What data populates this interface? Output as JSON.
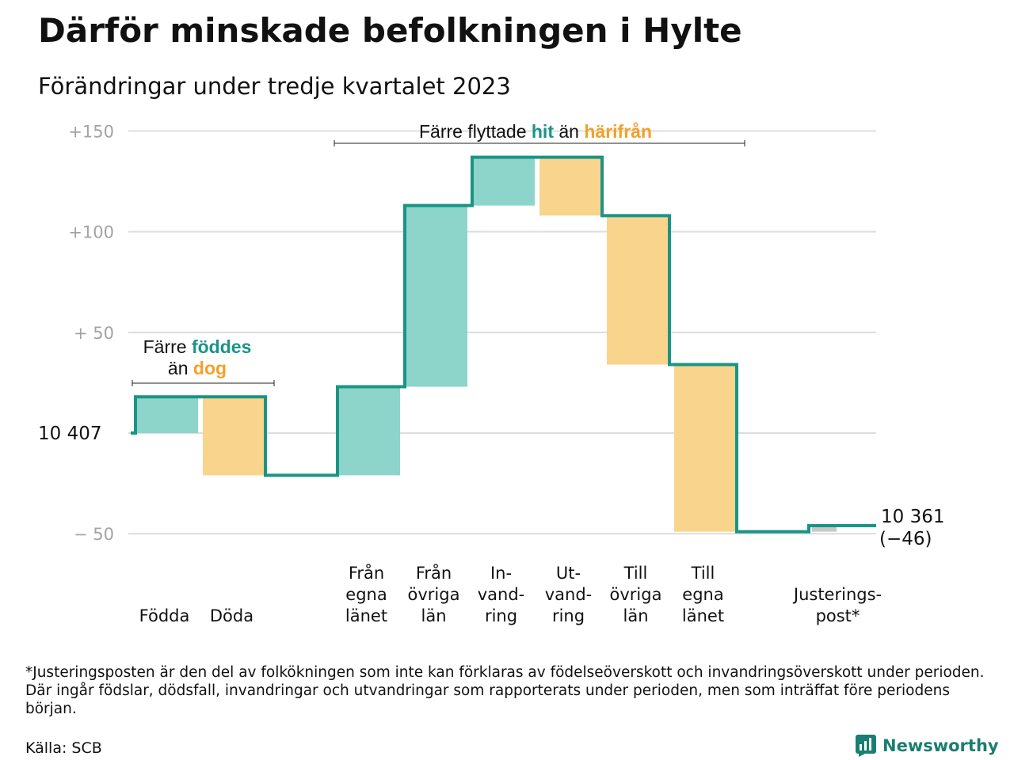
{
  "title": "Därför minskade befolkningen i Hylte",
  "subtitle": "Förändringar under tredje kvartalet 2023",
  "colors": {
    "inflow": "#8dd4cb",
    "outflow": "#f9d48d",
    "line": "#1a9485",
    "adjust": "#c8c8c8",
    "grid": "#dddddd",
    "green_text": "#1a9485",
    "orange_text": "#f2a12a"
  },
  "chart_data": {
    "type": "waterfall",
    "start": {
      "label": "10  407",
      "value": 0
    },
    "end": {
      "label": "10 361",
      "sublabel": "(−46)",
      "value": -46
    },
    "ylim": [
      -50,
      150
    ],
    "yticks": [
      {
        "value": 150,
        "label": "+150"
      },
      {
        "value": 100,
        "label": "+100"
      },
      {
        "value": 50,
        "label": "+  50"
      },
      {
        "value": -50,
        "label": "−  50"
      }
    ],
    "steps": [
      {
        "label_lines": [
          "Födda"
        ],
        "change": 18,
        "kind": "inflow"
      },
      {
        "label_lines": [
          "Döda"
        ],
        "change": -39,
        "kind": "outflow"
      },
      {
        "label_lines": [],
        "change": 0,
        "kind": "none"
      },
      {
        "label_lines": [
          "Från",
          "egna",
          "länet"
        ],
        "change": 44,
        "kind": "inflow"
      },
      {
        "label_lines": [
          "Från",
          "övriga",
          "län"
        ],
        "change": 90,
        "kind": "inflow"
      },
      {
        "label_lines": [
          "In-",
          "vand-",
          "ring"
        ],
        "change": 24,
        "kind": "inflow"
      },
      {
        "label_lines": [
          "Ut-",
          "vand-",
          "ring"
        ],
        "change": -29,
        "kind": "outflow"
      },
      {
        "label_lines": [
          "Till",
          "övriga",
          "län"
        ],
        "change": -74,
        "kind": "outflow"
      },
      {
        "label_lines": [
          "Till",
          "egna",
          "länet"
        ],
        "change": -83,
        "kind": "outflow"
      },
      {
        "label_lines": [],
        "change": 0,
        "kind": "none"
      },
      {
        "label_lines": [
          "Justerings-",
          "post*"
        ],
        "change": 3,
        "kind": "adjust"
      }
    ],
    "annotations": [
      {
        "lines": [
          [
            {
              "t": "Färre "
            },
            {
              "t": "föddes",
              "c": "green"
            }
          ],
          [
            {
              "t": "än "
            },
            {
              "t": "dog",
              "c": "orange"
            }
          ]
        ]
      },
      {
        "lines": [
          [
            {
              "t": "Färre flyttade "
            },
            {
              "t": "hit",
              "c": "green"
            },
            {
              "t": " än "
            },
            {
              "t": "härifrån",
              "c": "orange"
            }
          ]
        ]
      }
    ]
  },
  "footnote": "*Justeringsposten är den del av folkökningen som inte kan förklaras av födelseöverskott och invandringsöverskott under perioden. Där ingår födslar, dödsfall, invandringar och utvandringar som rapporterats under perioden, men som inträffat före periodens början.",
  "source": "Källa: SCB",
  "brand": {
    "name": "Newsworthy",
    "icon": "bar-chart-logo-icon"
  }
}
